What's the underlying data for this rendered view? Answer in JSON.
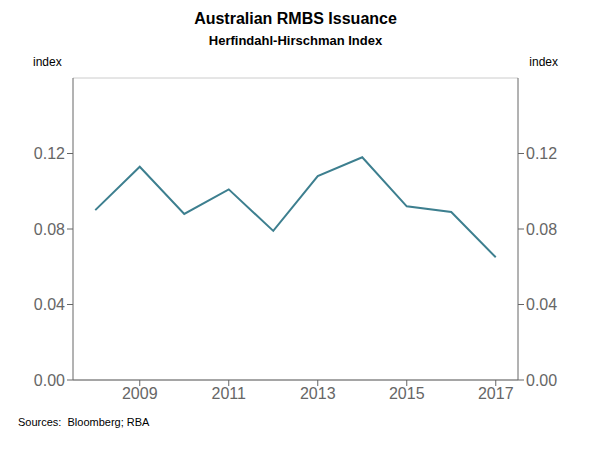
{
  "chart_data": {
    "type": "line",
    "title": "Australian RMBS Issuance",
    "subtitle": "Herfindahl-Hirschman Index",
    "ylabel": "index",
    "y2label": "index",
    "source": "Sources:  Bloomberg; RBA",
    "x": [
      2008.0,
      2009.0,
      2010.0,
      2011.0,
      2012.0,
      2013.0,
      2014.0,
      2015.0,
      2016.0,
      2017.0
    ],
    "values": [
      0.09,
      0.113,
      0.088,
      0.101,
      0.079,
      0.108,
      0.118,
      0.092,
      0.089,
      0.065
    ],
    "color": "#3d7f8f",
    "xlim": [
      2007.5,
      2017.5
    ],
    "xticks": [
      2009,
      2011,
      2013,
      2015,
      2017
    ],
    "ylim": [
      0.0,
      0.16
    ],
    "yticks": [
      {
        "value": 0,
        "label": "0.00"
      },
      0.04,
      0.08,
      0.12
    ],
    "y2lim": [
      0.0,
      0.16
    ],
    "y2ticks": [
      {
        "value": 0,
        "label": "0.00"
      },
      0.04,
      0.08,
      0.12
    ],
    "grid": true
  }
}
